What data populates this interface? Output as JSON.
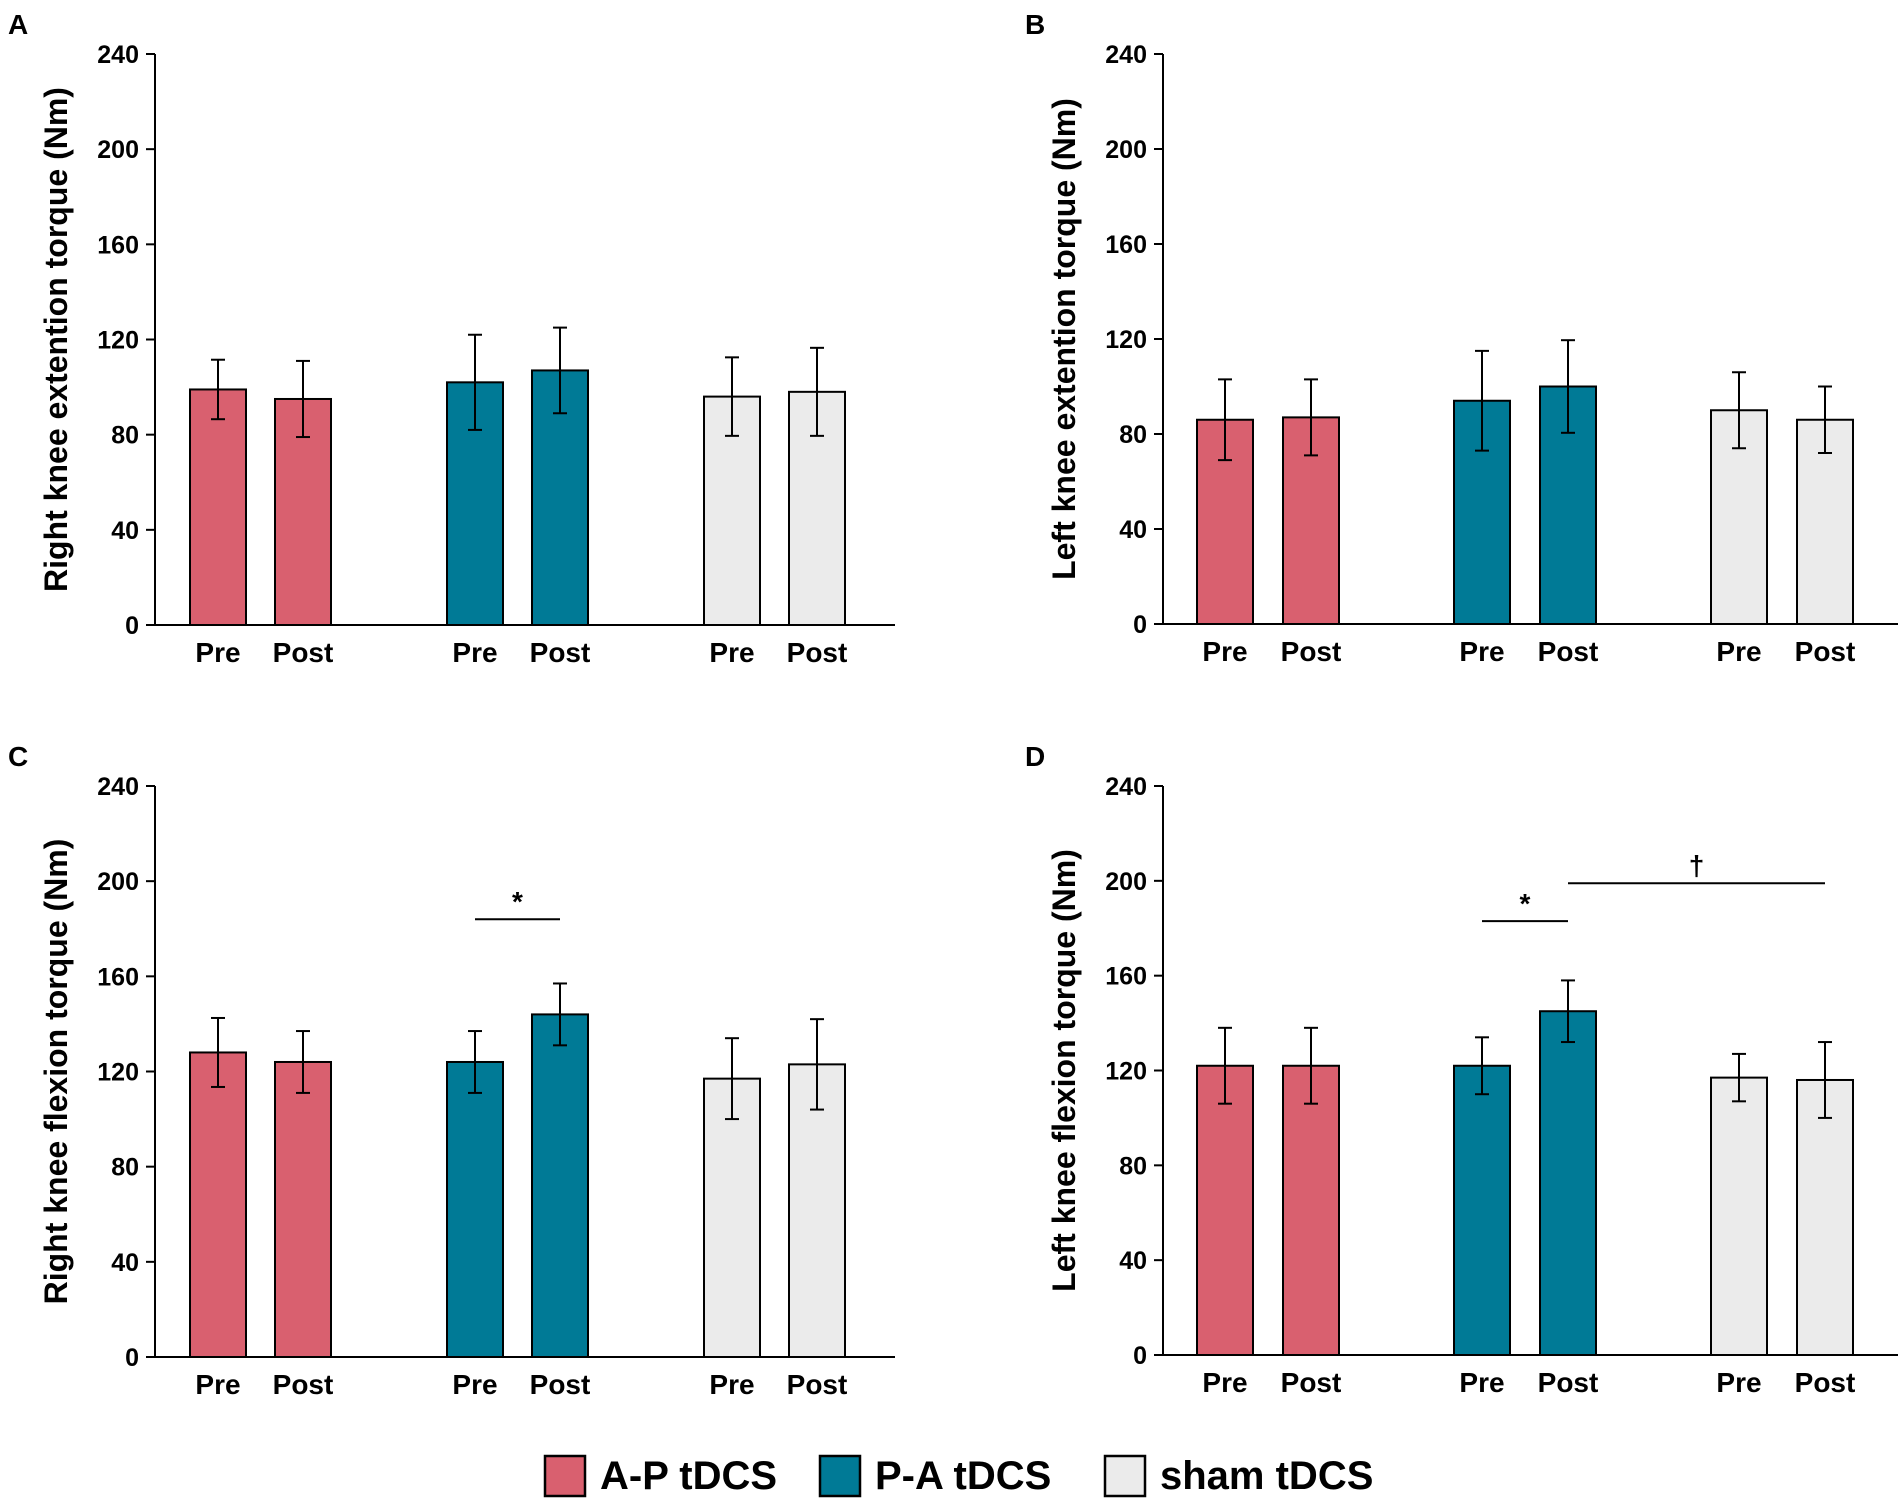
{
  "figure": {
    "legend": [
      {
        "label": "A-P tDCS",
        "color": "#d9606f"
      },
      {
        "label": "P-A tDCS",
        "color": "#007a96"
      },
      {
        "label": "sham tDCS",
        "color": "#ebebeb"
      }
    ]
  },
  "chart_data": [
    {
      "panel": "A",
      "type": "bar",
      "ylabel": "Right knee extention torque (Nm)",
      "ylim": [
        0,
        240
      ],
      "yticks": [
        0,
        40,
        80,
        120,
        160,
        200,
        240
      ],
      "categories": [
        "Pre",
        "Post",
        "Pre",
        "Post",
        "Pre",
        "Post"
      ],
      "groups": [
        "A-P tDCS",
        "A-P tDCS",
        "P-A tDCS",
        "P-A tDCS",
        "sham tDCS",
        "sham tDCS"
      ],
      "values": [
        99,
        95,
        102,
        107,
        96,
        98
      ],
      "errors": [
        12.5,
        16,
        20,
        18,
        16.5,
        18.5
      ],
      "annotations": []
    },
    {
      "panel": "B",
      "type": "bar",
      "ylabel": "Left knee extention torque (Nm)",
      "ylim": [
        0,
        240
      ],
      "yticks": [
        0,
        40,
        80,
        120,
        160,
        200,
        240
      ],
      "categories": [
        "Pre",
        "Post",
        "Pre",
        "Post",
        "Pre",
        "Post"
      ],
      "groups": [
        "A-P tDCS",
        "A-P tDCS",
        "P-A tDCS",
        "P-A tDCS",
        "sham tDCS",
        "sham tDCS"
      ],
      "values": [
        86,
        87,
        94,
        100,
        90,
        86
      ],
      "errors": [
        17,
        16,
        21,
        19.5,
        16,
        14
      ],
      "annotations": []
    },
    {
      "panel": "C",
      "type": "bar",
      "ylabel": "Right knee flexion torque (Nm)",
      "ylim": [
        0,
        240
      ],
      "yticks": [
        0,
        40,
        80,
        120,
        160,
        200,
        240
      ],
      "categories": [
        "Pre",
        "Post",
        "Pre",
        "Post",
        "Pre",
        "Post"
      ],
      "groups": [
        "A-P tDCS",
        "A-P tDCS",
        "P-A tDCS",
        "P-A tDCS",
        "sham tDCS",
        "sham tDCS"
      ],
      "values": [
        128,
        124,
        124,
        144,
        117,
        123
      ],
      "errors": [
        14.5,
        13,
        13,
        13,
        17,
        19
      ],
      "annotations": [
        {
          "from": 2,
          "to": 3,
          "level": 184,
          "symbol": "*"
        }
      ]
    },
    {
      "panel": "D",
      "type": "bar",
      "ylabel": "Left knee flexion torque (Nm)",
      "ylim": [
        0,
        240
      ],
      "yticks": [
        0,
        40,
        80,
        120,
        160,
        200,
        240
      ],
      "categories": [
        "Pre",
        "Post",
        "Pre",
        "Post",
        "Pre",
        "Post"
      ],
      "groups": [
        "A-P tDCS",
        "A-P tDCS",
        "P-A tDCS",
        "P-A tDCS",
        "sham tDCS",
        "sham tDCS"
      ],
      "values": [
        122,
        122,
        122,
        145,
        117,
        116
      ],
      "errors": [
        16,
        16,
        12,
        13,
        10,
        16
      ],
      "annotations": [
        {
          "from": 2,
          "to": 3,
          "level": 183,
          "symbol": "*"
        },
        {
          "from": 3,
          "to": 5,
          "level": 199,
          "symbol": "†"
        }
      ]
    }
  ]
}
